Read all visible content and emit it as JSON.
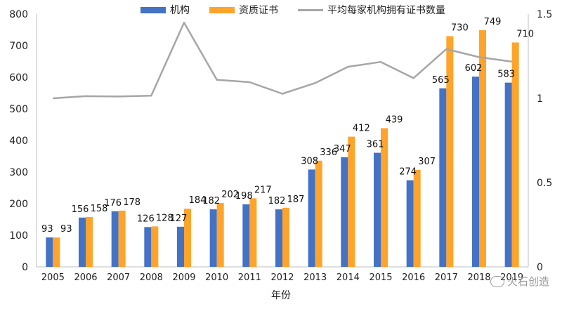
{
  "chart_data": {
    "type": "bar",
    "categories": [
      "2005",
      "2006",
      "2007",
      "2008",
      "2009",
      "2010",
      "2011",
      "2012",
      "2013",
      "2014",
      "2015",
      "2016",
      "2017",
      "2018",
      "2019"
    ],
    "series": [
      {
        "name": "机构",
        "values": [
          93,
          156,
          176,
          126,
          127,
          182,
          198,
          182,
          308,
          347,
          361,
          274,
          565,
          602,
          583
        ],
        "color": "#4472C4",
        "axis": "left"
      },
      {
        "name": "资质证书",
        "values": [
          93,
          158,
          178,
          128,
          184,
          202,
          217,
          187,
          336,
          412,
          439,
          307,
          730,
          749,
          710
        ],
        "color": "#FFA42B",
        "axis": "left"
      },
      {
        "name": "平均每家机构拥有证书数量",
        "type": "line",
        "values": [
          1.0,
          1.013,
          1.011,
          1.016,
          1.449,
          1.11,
          1.096,
          1.027,
          1.091,
          1.187,
          1.216,
          1.12,
          1.292,
          1.244,
          1.218
        ],
        "color": "#A6A6A6",
        "axis": "right"
      }
    ],
    "xlabel": "年份",
    "ylabel": "",
    "ylim": [
      0,
      800
    ],
    "yticks": [
      0,
      100,
      200,
      300,
      400,
      500,
      600,
      700,
      800
    ],
    "y2lim": [
      0,
      1.5
    ],
    "y2ticks": [
      "0",
      "0.5",
      "1",
      "1.5"
    ],
    "legend_position": "top",
    "grid": false
  },
  "legend": {
    "s1": "机构",
    "s2": "资质证书",
    "s3": "平均每家机构拥有证书数量"
  },
  "xlabel": "年份",
  "watermark": "火石创造"
}
